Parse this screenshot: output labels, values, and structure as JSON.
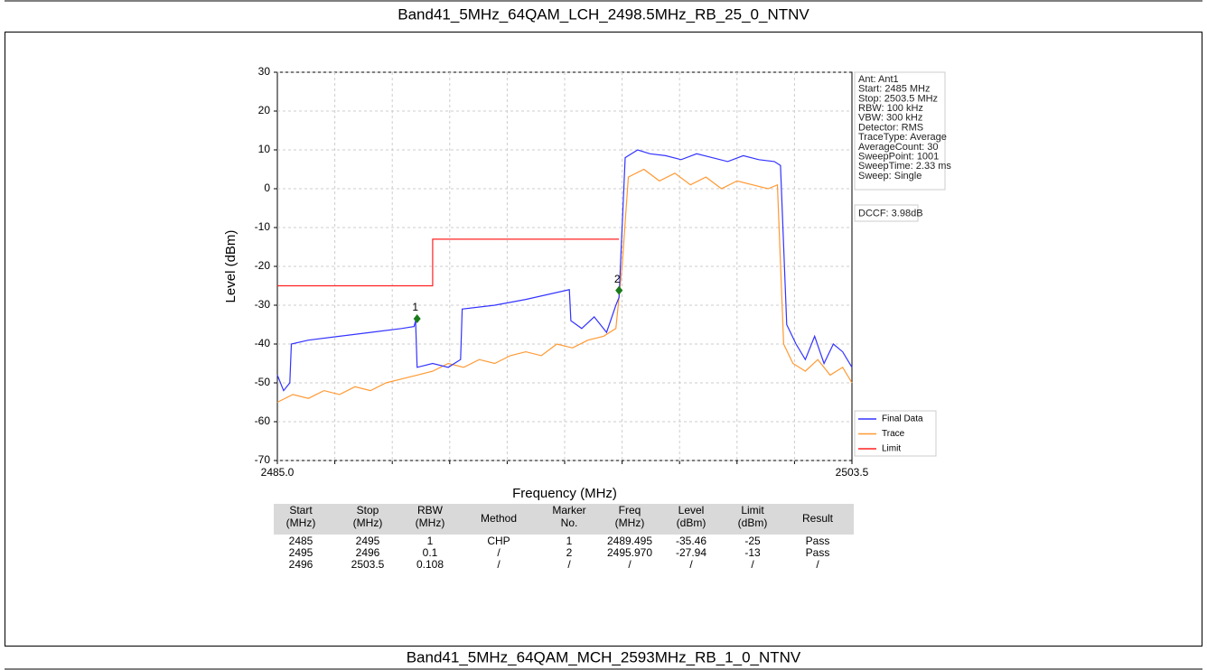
{
  "header": {
    "title": "Band41_5MHz_64QAM_LCH_2498.5MHz_RB_25_0_NTNV"
  },
  "chart_data": {
    "type": "line",
    "xlabel": "Frequency (MHz)",
    "ylabel": "Level (dBm)",
    "xlim": [
      2485,
      2503.5
    ],
    "ylim": [
      -70,
      30
    ],
    "xticks": [
      {
        "value": 2485,
        "label": "2485.0"
      },
      {
        "value": 2503.5,
        "label": "2503.5"
      }
    ],
    "x_grid_divisions": 10,
    "yticks": [
      30,
      20,
      10,
      0,
      -10,
      -20,
      -30,
      -40,
      -50,
      -60,
      -70
    ],
    "grid": true,
    "legend": "lower right",
    "series": [
      {
        "name": "Final Data",
        "color": "#3333ff",
        "x": [
          2485,
          2485.2,
          2485.4,
          2485.45,
          2486,
          2487,
          2488,
          2489,
          2489.4,
          2489.45,
          2489.5,
          2490,
          2490.5,
          2490.9,
          2490.95,
          2492,
          2493,
          2494.4,
          2494.45,
          2494.8,
          2495.2,
          2495.6,
          2495.9,
          2496.0,
          2496.2,
          2496.6,
          2497,
          2497.5,
          2498,
          2498.5,
          2499,
          2499.5,
          2500,
          2500.5,
          2501.0,
          2501.2,
          2501.4,
          2501.7,
          2502,
          2502.3,
          2502.6,
          2502.9,
          2503.2,
          2503.5
        ],
        "values": [
          -48,
          -52,
          -50,
          -40,
          -39,
          -38,
          -37,
          -36,
          -35.5,
          -34,
          -46,
          -45,
          -46,
          -44,
          -31,
          -30,
          -28.5,
          -26,
          -34,
          -36,
          -33,
          -37,
          -30,
          -28,
          8,
          10,
          9,
          8.5,
          7.5,
          9,
          8,
          7,
          8.5,
          7.5,
          7,
          6,
          -35,
          -40,
          -44,
          -38,
          -45,
          -40,
          -42,
          -46
        ]
      },
      {
        "name": "Trace",
        "color": "#ff9933",
        "x": [
          2485,
          2485.5,
          2486,
          2486.5,
          2487,
          2487.5,
          2488,
          2488.5,
          2489,
          2489.5,
          2490,
          2490.5,
          2491,
          2491.5,
          2492,
          2492.5,
          2493,
          2493.5,
          2494,
          2494.5,
          2495,
          2495.5,
          2495.9,
          2496.1,
          2496.3,
          2496.8,
          2497.3,
          2497.8,
          2498.3,
          2498.8,
          2499.3,
          2499.8,
          2500.3,
          2500.8,
          2501.1,
          2501.3,
          2501.6,
          2502,
          2502.4,
          2502.8,
          2503.2,
          2503.5
        ],
        "values": [
          -55,
          -53,
          -54,
          -52,
          -53,
          -51,
          -52,
          -50,
          -49,
          -48,
          -47,
          -45,
          -46,
          -44,
          -45,
          -43,
          -42,
          -43,
          -40,
          -41,
          -39,
          -38,
          -36,
          -20,
          3,
          5,
          2,
          4,
          1,
          3,
          0,
          2,
          1,
          0,
          1,
          -40,
          -45,
          -47,
          -44,
          -48,
          -46,
          -50
        ]
      },
      {
        "name": "Limit",
        "color": "#ff2222",
        "x": [
          2485,
          2490,
          2490,
          2496
        ],
        "values": [
          -25,
          -25,
          -13,
          -13
        ]
      }
    ],
    "markers": [
      {
        "label": "1",
        "color": "#1a7a1a",
        "x": 2489.5,
        "y": -33.5
      },
      {
        "label": "2",
        "color": "#1a7a1a",
        "x": 2496.0,
        "y": -26.2
      }
    ],
    "annotations": [
      "Ant: Ant1",
      "Start: 2485 MHz",
      "Stop: 2503.5 MHz",
      "RBW: 100 kHz",
      "VBW: 300 kHz",
      "Detector: RMS",
      "TraceType: Average",
      "AverageCount: 30",
      "SweepPoint: 1001",
      "SweepTime: 2.33 ms",
      "Sweep: Single"
    ],
    "dccf": "DCCF: 3.98dB"
  },
  "table": {
    "header": [
      [
        "Start",
        "(MHz)"
      ],
      [
        "Stop",
        "(MHz)"
      ],
      [
        "RBW",
        "(MHz)"
      ],
      [
        "Method"
      ],
      [
        "Marker",
        "No."
      ],
      [
        "Freq",
        "(MHz)"
      ],
      [
        "Level",
        "(dBm)"
      ],
      [
        "Limit",
        "(dBm)"
      ],
      [
        "Result"
      ]
    ],
    "rows": [
      [
        "2485",
        "2495",
        "1",
        "CHP",
        "1",
        "2489.495",
        "-35.46",
        "-25",
        "Pass"
      ],
      [
        "2495",
        "2496",
        "0.1",
        "/",
        "2",
        "2495.970",
        "-27.94",
        "-13",
        "Pass"
      ],
      [
        "2496",
        "2503.5",
        "0.108",
        "/",
        "/",
        "/",
        "/",
        "/",
        "/"
      ]
    ]
  },
  "footer": {
    "title": "Band41_5MHz_64QAM_MCH_2593MHz_RB_1_0_NTNV"
  }
}
